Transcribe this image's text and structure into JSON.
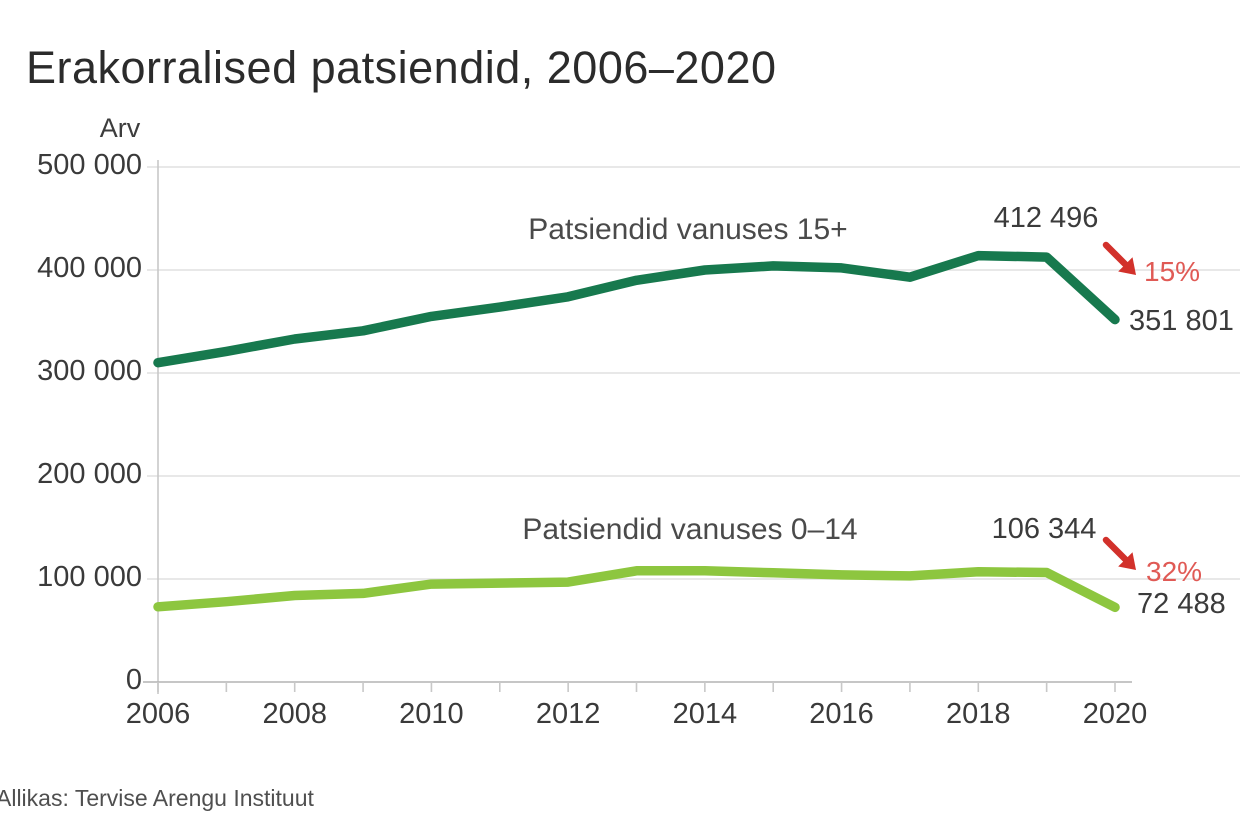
{
  "title": "Erakorralised patsiendid, 2006–2020",
  "source": "Allikas: Tervise Arengu Instituut",
  "colors": {
    "series_15plus": "#17794e",
    "series_0_14": "#8dc63f",
    "arrow_red": "#d2312b",
    "percent_red": "#e05a55",
    "grid": "#e0e0e0",
    "axis_x": "#b4b4b4",
    "axis_y": "#c8c8c8",
    "title_text": "#2b2b2b",
    "tick_text": "#3a3a3a"
  },
  "chart_data": {
    "type": "line",
    "title": "Erakorralised patsiendid, 2006–2020",
    "xlabel": "",
    "ylabel": "Arv",
    "ylim": [
      0,
      500000
    ],
    "grid": "horizontal",
    "legend_position": "inline-labels",
    "x": [
      2006,
      2007,
      2008,
      2009,
      2010,
      2011,
      2012,
      2013,
      2014,
      2015,
      2016,
      2017,
      2018,
      2019,
      2020
    ],
    "x_tick_labels": [
      "2006",
      "2008",
      "2010",
      "2012",
      "2014",
      "2016",
      "2018",
      "2020"
    ],
    "y_tick_labels": [
      "500 000",
      "400 000",
      "300 000",
      "200 000",
      "100 000",
      "0"
    ],
    "y_tick_values": [
      500000,
      400000,
      300000,
      200000,
      100000,
      0
    ],
    "series": [
      {
        "name": "Patsiendid vanuses 15+",
        "color": "#17794e",
        "values": [
          310000,
          321000,
          333000,
          341000,
          355000,
          364000,
          374000,
          390000,
          400000,
          404000,
          402000,
          393000,
          414000,
          412496,
          351801
        ],
        "peak_label": "412 496",
        "end_label": "351 801",
        "pct_change": "15%"
      },
      {
        "name": "Patsiendid vanuses 0–14",
        "color": "#8dc63f",
        "values": [
          73000,
          78000,
          84000,
          86000,
          95000,
          96000,
          97000,
          108000,
          108000,
          106000,
          104000,
          103000,
          107000,
          106344,
          72488
        ],
        "peak_label": "106 344",
        "end_label": "72 488",
        "pct_change": "32%"
      }
    ]
  }
}
